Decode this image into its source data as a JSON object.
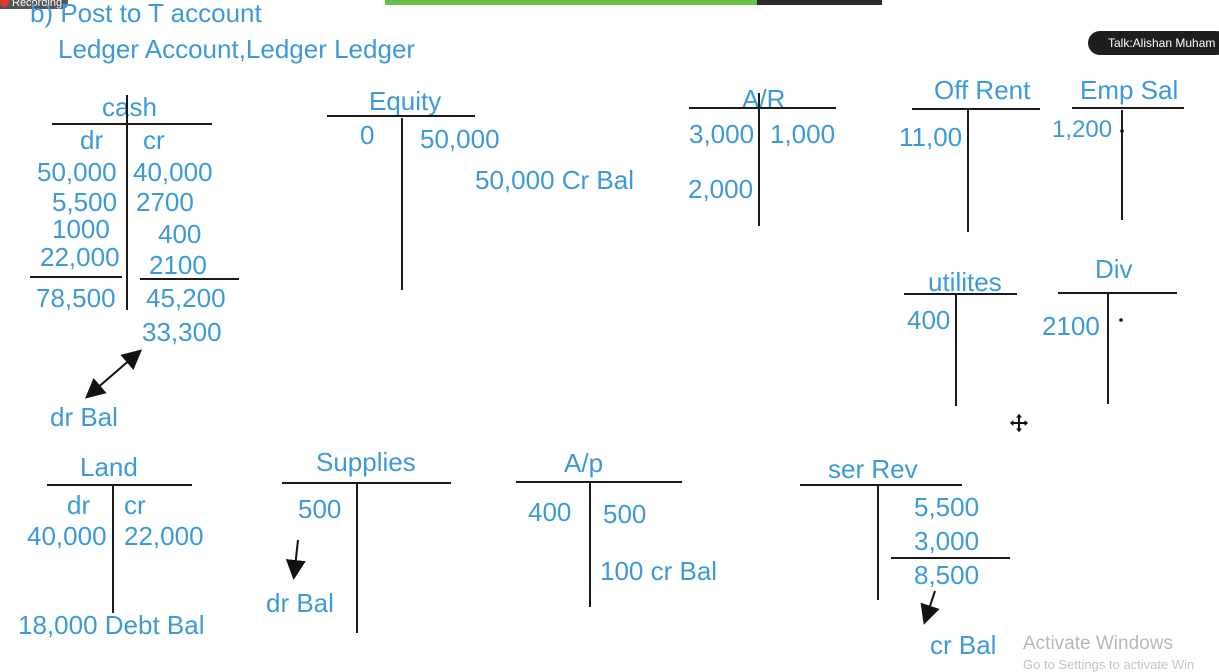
{
  "overlay": {
    "recording_label": "Recording",
    "talk_label": "Talk:Alishan Muham",
    "activate_title": "Activate Windows",
    "activate_sub": "Go to Settings to activate Win"
  },
  "header": {
    "heading": "b) Post to T account",
    "subheading": "Ledger Account,Ledger Ledger"
  },
  "accounts": {
    "cash": {
      "title": "cash",
      "dr": "dr",
      "cr": "cr",
      "debits": [
        "50,000",
        "5,500",
        "1000",
        "22,000"
      ],
      "credits": [
        "40,000",
        "2700",
        "400",
        "2100"
      ],
      "dr_total": "78,500",
      "cr_total": "45,200",
      "balance": "33,300",
      "note": "dr Bal"
    },
    "equity": {
      "title": "Equity",
      "debit": "0",
      "credit": "50,000",
      "note": "50,000 Cr Bal"
    },
    "ar": {
      "title": "A/R",
      "debits": [
        "3,000",
        "2,000"
      ],
      "credit": "1,000"
    },
    "off_rent": {
      "title": "Off Rent",
      "debit": "11,00"
    },
    "emp_sal": {
      "title": "Emp Sal",
      "debit": "1,200"
    },
    "utilities": {
      "title": "utilites",
      "debit": "400"
    },
    "div": {
      "title": "Div",
      "debit": "2100"
    },
    "land": {
      "title": "Land",
      "dr": "dr",
      "cr": "cr",
      "debit": "40,000",
      "credit": "22,000",
      "note": "18,000 Debt Bal"
    },
    "supplies": {
      "title": "Supplies",
      "debit": "500",
      "note": "dr Bal"
    },
    "ap": {
      "title": "A/p",
      "debit": "400",
      "credit": "500",
      "note": "100 cr Bal"
    },
    "ser_rev": {
      "title": "ser Rev",
      "credits": [
        "5,500",
        "3,000"
      ],
      "total": "8,500",
      "note": "cr Bal"
    }
  },
  "icons": {
    "move_cursor": "move-cursor-icon"
  },
  "colors": {
    "ink_blue": "#3c9ad8",
    "ink_black": "#1a1a1a"
  }
}
